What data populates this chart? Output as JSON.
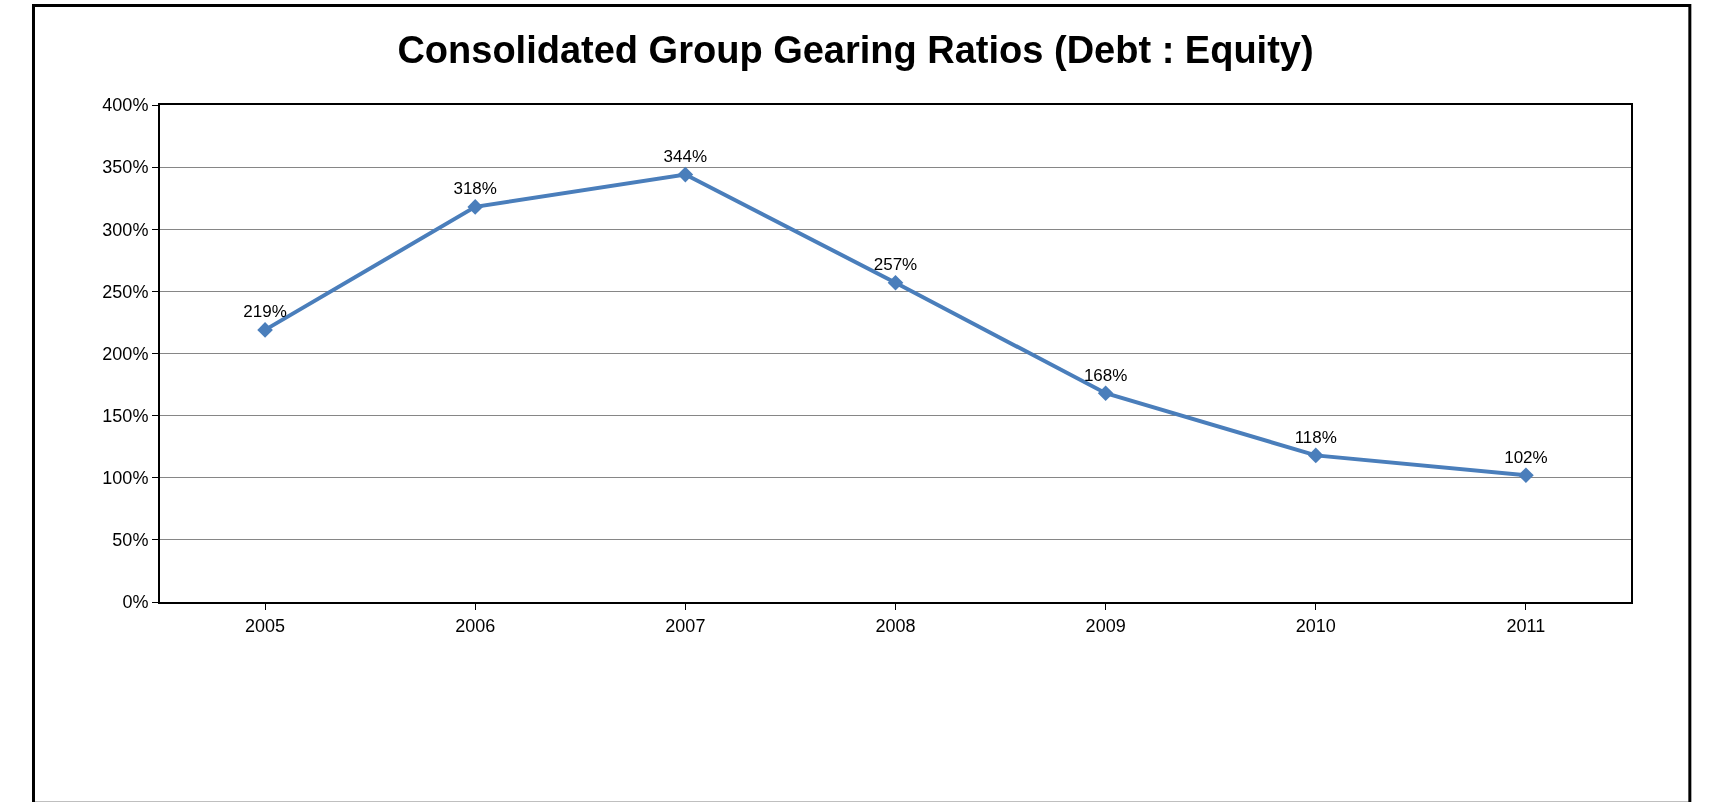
{
  "chart_data": {
    "type": "line",
    "title": "Consolidated Group Gearing Ratios (Debt : Equity)",
    "categories": [
      "2005",
      "2006",
      "2007",
      "2008",
      "2009",
      "2010",
      "2011"
    ],
    "series": [
      {
        "color": "#4a7ebb",
        "values": [
          219,
          318,
          344,
          257,
          168,
          118,
          102
        ],
        "value_labels": [
          "219%",
          "318%",
          "344%",
          "257%",
          "168%",
          "118%",
          "102%"
        ]
      }
    ],
    "ylim": [
      0,
      400
    ],
    "yticks": [
      {
        "value": 0,
        "label": "0%"
      },
      {
        "value": 50,
        "label": "50%"
      },
      {
        "value": 100,
        "label": "100%"
      },
      {
        "value": 150,
        "label": "150%"
      },
      {
        "value": 200,
        "label": "200%"
      },
      {
        "value": 250,
        "label": "250%"
      },
      {
        "value": 300,
        "label": "300%"
      },
      {
        "value": 350,
        "label": "350%"
      },
      {
        "value": 400,
        "label": "400%"
      }
    ],
    "grid": "y",
    "marker": "diamond",
    "line_style": "solid"
  }
}
